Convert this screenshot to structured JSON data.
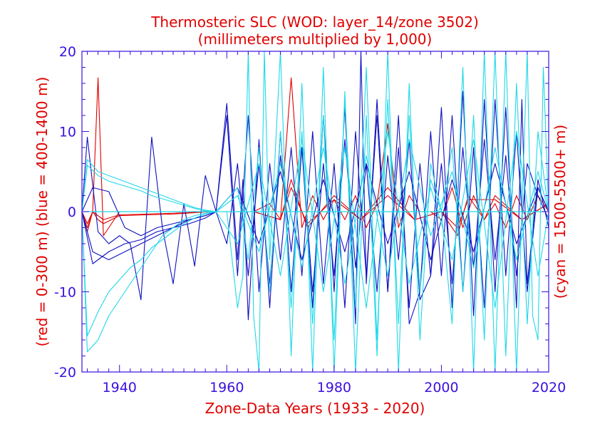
{
  "chart_data": {
    "type": "line",
    "title": "Thermosteric SLC (WOD: layer_14/zone 3502)",
    "subtitle": "(millimeters multiplied by 1,000)",
    "xlabel": "Zone-Data Years (1933 - 2020)",
    "ylabel_left": "(red = 0-300 m)  (blue = 400-1400 m)",
    "ylabel_right": "(cyan = 1500-5500+ m)",
    "xlim": [
      1933,
      2020
    ],
    "ylim": [
      -20,
      20
    ],
    "x_ticks": [
      1940,
      1960,
      1980,
      2000,
      2020
    ],
    "y_ticks": [
      -20,
      -10,
      0,
      10,
      20
    ],
    "x_tick_labels": [
      "1940",
      "1960",
      "1980",
      "2000",
      "2020"
    ],
    "y_tick_labels": [
      "-20",
      "-10",
      "0",
      "10",
      "20"
    ],
    "grid": false,
    "colors": {
      "axis": "#3a10e0",
      "text": "#e00000",
      "red": "#e00000",
      "blue": "#1010c0",
      "cyan": "#20d8e8"
    },
    "series": [
      {
        "group": "red",
        "x": [
          1933,
          1934,
          1935,
          1936,
          1937,
          1940,
          1945,
          1950,
          1955,
          1957,
          1960,
          1965,
          1968,
          1970,
          1972,
          1974,
          1976,
          1978,
          1980,
          1982,
          1984,
          1986,
          1988,
          1990,
          1992,
          1994,
          1996,
          1998,
          2000,
          2002,
          2004,
          2006,
          2008,
          2010,
          2012,
          2014,
          2016,
          2018,
          2020
        ],
        "y": [
          0,
          -2.5,
          0,
          16.7,
          -3,
          0,
          0,
          0,
          0,
          0,
          0,
          0,
          1,
          -1,
          16.7,
          -2,
          2,
          -1,
          1.5,
          -1,
          2,
          -2,
          1,
          11,
          -2,
          2,
          0,
          0,
          -1,
          3,
          -2,
          2,
          -1,
          1,
          -2,
          2,
          -1,
          2,
          0
        ]
      },
      {
        "group": "red",
        "x": [
          1933,
          1934,
          1935,
          1936,
          1937,
          1940,
          1950,
          1957,
          1965,
          1970,
          1972,
          1975,
          1980,
          1985,
          1990,
          1995,
          2000,
          2003,
          2005,
          2008,
          2010,
          2015,
          2020
        ],
        "y": [
          0,
          -2,
          0,
          -1,
          -1.5,
          -0.5,
          -0.3,
          0,
          0,
          -1,
          4,
          -2,
          2,
          -1,
          3,
          -1,
          0,
          -3,
          2,
          -1,
          2,
          -1,
          1
        ]
      },
      {
        "group": "red",
        "x": [
          1933,
          1934,
          1935,
          1937,
          1940,
          1950,
          1957,
          1965,
          1970,
          1972,
          1975,
          1980,
          1985,
          1990,
          1995,
          2000,
          2003,
          2005,
          2010,
          2015,
          2020
        ],
        "y": [
          0,
          -1.5,
          0,
          -1,
          -0.4,
          -0.2,
          0,
          0,
          -1,
          3,
          -1.5,
          1.5,
          -1,
          2,
          -1,
          0,
          -2,
          1.5,
          1.5,
          -1,
          1
        ]
      },
      {
        "group": "blue",
        "x": [
          1933,
          1934,
          1936,
          1938,
          1940,
          1942,
          1944,
          1946,
          1948,
          1950,
          1952,
          1954,
          1956,
          1958,
          1960,
          1962,
          1963,
          1964,
          1966,
          1968,
          1970,
          1972,
          1974,
          1976,
          1978,
          1980,
          1982,
          1984,
          1985,
          1986,
          1988,
          1990,
          1992,
          1994,
          1996,
          1998,
          2000,
          2002,
          2004,
          2006,
          2008,
          2010,
          2012,
          2014,
          2015,
          2016,
          2018,
          2020
        ],
        "y": [
          0,
          9.3,
          -2.5,
          -4,
          -3,
          -4,
          -11,
          9.3,
          -2,
          -9,
          1,
          -6.8,
          4.5,
          0,
          13.5,
          -6,
          4,
          -13.5,
          9,
          -12,
          10,
          -10,
          8,
          -12,
          12,
          -10,
          13,
          -14,
          20,
          -9,
          14,
          -10,
          8,
          -12,
          6,
          -8,
          13,
          -12,
          15,
          -13,
          14,
          -10,
          13,
          -12,
          14,
          -9,
          4,
          -2
        ]
      },
      {
        "group": "blue",
        "x": [
          1933,
          1935,
          1938,
          1941,
          1944,
          1947,
          1950,
          1953,
          1956,
          1958,
          1960,
          1962,
          1964,
          1966,
          1968,
          1970,
          1972,
          1974,
          1976,
          1978,
          1980,
          1982,
          1984,
          1986,
          1988,
          1990,
          1992,
          1994,
          1996,
          1998,
          2000,
          2002,
          2004,
          2006,
          2008,
          2010,
          2012,
          2014,
          2016,
          2018,
          2020
        ],
        "y": [
          0,
          3,
          2.5,
          -2,
          -3,
          -2,
          -1.5,
          -1,
          -0.5,
          0,
          12,
          -8,
          12,
          -10,
          6,
          -6,
          8,
          -8,
          10,
          -9,
          6,
          -12,
          10,
          -8,
          12,
          -10,
          12,
          -14,
          -10,
          10,
          -8,
          12,
          -10,
          8,
          -12,
          14,
          -8,
          10,
          -10,
          3,
          0
        ]
      },
      {
        "group": "blue",
        "x": [
          1933,
          1935,
          1938,
          1941,
          1944,
          1947,
          1950,
          1953,
          1956,
          1958,
          1960,
          1962,
          1964,
          1966,
          1968,
          1970,
          1972,
          1974,
          1976,
          1978,
          1980,
          1982,
          1984,
          1986,
          1988,
          1990,
          1992,
          1994,
          1996,
          1998,
          2000,
          2002,
          2004,
          2006,
          2008,
          2010,
          2012,
          2014,
          2016,
          2018,
          2020
        ],
        "y": [
          0,
          -5,
          -6,
          -5,
          -4,
          -3,
          -2,
          -1.5,
          -0.8,
          0,
          -4,
          6,
          -8,
          6,
          -9,
          7,
          -5,
          8,
          -10,
          6,
          -8,
          9,
          -7,
          6,
          -10,
          7,
          -6,
          9,
          -11,
          -8,
          6,
          -9,
          8,
          -7,
          9,
          -6,
          7,
          -8,
          6,
          2,
          -1
        ]
      },
      {
        "group": "blue",
        "x": [
          1933,
          1935,
          1938,
          1941,
          1944,
          1947,
          1950,
          1953,
          1956,
          1958,
          1962,
          1966,
          1970,
          1974,
          1978,
          1982,
          1986,
          1990,
          1994,
          1998,
          2002,
          2006,
          2010,
          2014,
          2018,
          2020
        ],
        "y": [
          0,
          -6.5,
          -5,
          -4,
          -3.5,
          -2.5,
          -2,
          -1,
          -0.5,
          0,
          3,
          -4,
          5,
          -6,
          4,
          -5,
          6,
          -4,
          5,
          -6,
          4,
          -5,
          6,
          -4,
          3,
          0
        ]
      },
      {
        "group": "cyan",
        "x": [
          1933,
          1934,
          1936,
          1938,
          1940,
          1942,
          1944,
          1946,
          1948,
          1950,
          1952,
          1954,
          1956,
          1958,
          1960,
          1962,
          1963,
          1964,
          1965,
          1966,
          1967,
          1968,
          1970,
          1972,
          1974,
          1976,
          1978,
          1980,
          1982,
          1984,
          1986,
          1988,
          1990,
          1992,
          1994,
          1996,
          1998,
          2000,
          2002,
          2004,
          2006,
          2008,
          2010,
          2012,
          2014,
          2016,
          2017,
          2018,
          2019,
          2020
        ],
        "y": [
          0,
          -17.5,
          -16,
          -13,
          -11,
          -9,
          -7,
          -5,
          -3,
          -2,
          -1,
          -0.5,
          -0.2,
          0,
          0,
          -12,
          -8,
          20,
          -13,
          -20,
          20,
          -6,
          20,
          -18,
          16,
          -20,
          18,
          -20,
          15,
          -20,
          12,
          -18,
          20,
          -20,
          16,
          -16,
          6,
          0,
          -14,
          18,
          -20,
          20,
          -20,
          20,
          -20,
          20,
          -13,
          -16,
          18,
          0
        ]
      },
      {
        "group": "cyan",
        "x": [
          1933,
          1934,
          1936,
          1938,
          1940,
          1942,
          1944,
          1946,
          1948,
          1950,
          1952,
          1954,
          1956,
          1958,
          1962,
          1964,
          1966,
          1968,
          1970,
          1972,
          1974,
          1976,
          1978,
          1980,
          1982,
          1984,
          1986,
          1988,
          1990,
          1992,
          1994,
          1996,
          1998,
          2000,
          2002,
          2004,
          2006,
          2008,
          2010,
          2012,
          2014,
          2016,
          2018,
          2020
        ],
        "y": [
          0,
          6.5,
          5,
          4.5,
          4,
          3.5,
          3,
          2.5,
          2,
          1.5,
          1,
          0.5,
          0.2,
          0,
          3,
          -6,
          8,
          -10,
          10,
          -12,
          10,
          -14,
          12,
          -16,
          14,
          -12,
          18,
          -16,
          14,
          -14,
          12,
          -10,
          4,
          0,
          8,
          -10,
          12,
          -16,
          20,
          -18,
          16,
          -14,
          10,
          0
        ]
      },
      {
        "group": "cyan",
        "x": [
          1933,
          1934,
          1936,
          1938,
          1940,
          1942,
          1944,
          1946,
          1948,
          1950,
          1952,
          1954,
          1956,
          1958,
          1962,
          1966,
          1970,
          1974,
          1978,
          1982,
          1986,
          1990,
          1994,
          1998,
          2002,
          2006,
          2010,
          2014,
          2018,
          2020
        ],
        "y": [
          0,
          -15.5,
          -12.5,
          -10,
          -8.5,
          -7,
          -6,
          -4.5,
          -3.5,
          -2.5,
          -1.5,
          -0.8,
          -0.3,
          0,
          -4,
          6,
          -8,
          9,
          -10,
          8,
          -12,
          10,
          -9,
          3,
          -6,
          9,
          -12,
          10,
          -8,
          0
        ]
      },
      {
        "group": "cyan",
        "x": [
          1933,
          1934,
          1936,
          1938,
          1940,
          1942,
          1944,
          1946,
          1948,
          1950,
          1952,
          1954,
          1956,
          1958,
          1962,
          1966,
          1970,
          1974,
          1978,
          1982,
          1986,
          1990,
          1994,
          1998,
          2002,
          2006,
          2010,
          2014,
          2018,
          2020
        ],
        "y": [
          0,
          5.8,
          4.5,
          3.8,
          3.4,
          3,
          2.6,
          2,
          1.6,
          1.2,
          0.8,
          0.4,
          0.1,
          0,
          2,
          -5,
          6,
          -7,
          8,
          -9,
          7,
          -8,
          9,
          -3,
          5,
          -7,
          8,
          -6,
          5,
          0
        ]
      }
    ]
  }
}
